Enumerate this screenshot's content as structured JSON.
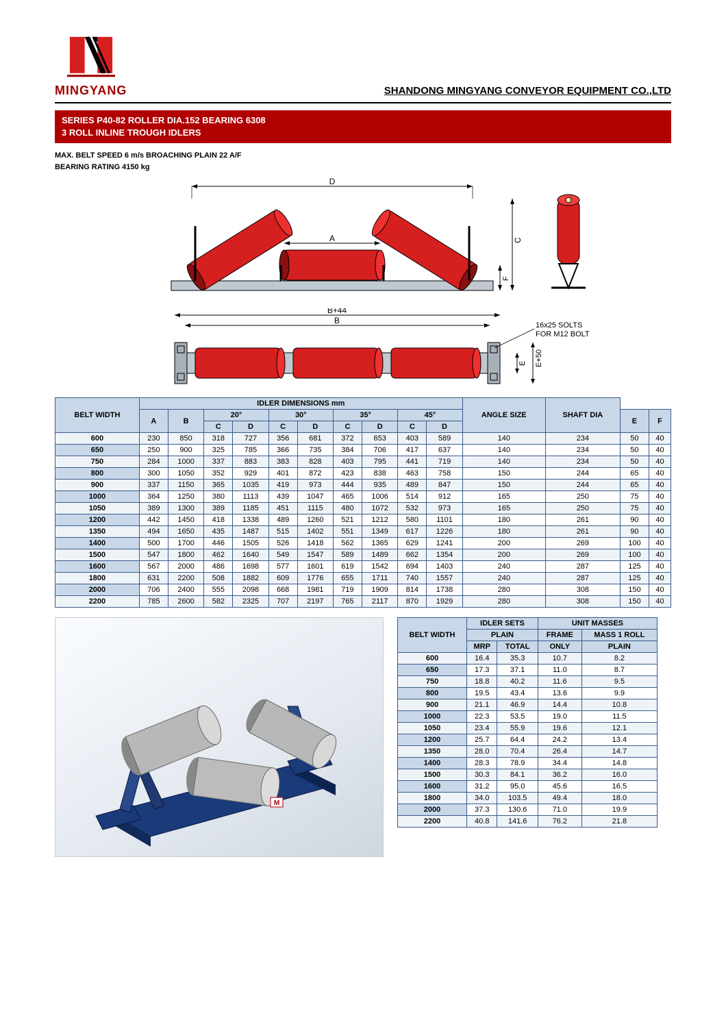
{
  "colors": {
    "brand_red": "#b00000",
    "logo_red": "#d61f1f",
    "table_header_bg": "#c8d8e8",
    "table_border": "#3a5a8a",
    "table_row_alt": "#eef3f8",
    "roller_red": "#d61f1f",
    "roller_red_dark": "#8a0f0f",
    "frame_gray": "#808080"
  },
  "logo": {
    "text": "MINGYANG"
  },
  "header": {
    "company": "SHANDONG MINGYANG CONVEYOR EQUIPMENT CO.,LTD"
  },
  "title": {
    "line1": "SERIES P40-82 ROLLER DIA.152 BEARING 6308",
    "line2": "3 ROLL INLINE TROUGH IDLERS"
  },
  "spec": {
    "line1": "MAX. BELT SPEED 6 m/s BROACHING PLAIN 22 A/F",
    "line2": "BEARING RATING 4150 kg"
  },
  "diagram": {
    "labels": {
      "D": "D",
      "A": "A",
      "C": "C",
      "F": "F",
      "B": "B",
      "B44": "B+44",
      "E": "E",
      "E50": "E+50",
      "slots": "16x25 SOLTS\nFOR M12 BOLT"
    }
  },
  "dim_table": {
    "title": "IDLER DIMENSIONS mm",
    "col_belt": "BELT WIDTH",
    "col_A": "A",
    "col_B": "B",
    "angles": [
      "20°",
      "30°",
      "35°",
      "45°"
    ],
    "sub_C": "C",
    "sub_D": "D",
    "col_E": "E",
    "col_F": "F",
    "col_angle_size": "ANGLE SIZE",
    "col_shaft_dia": "SHAFT DIA",
    "rows": [
      {
        "bw": "600",
        "A": "230",
        "B": "850",
        "20C": "318",
        "20D": "727",
        "30C": "356",
        "30D": "681",
        "35C": "372",
        "35D": "653",
        "45C": "403",
        "45D": "589",
        "E": "140",
        "F": "234",
        "ang": "50",
        "sh": "40"
      },
      {
        "bw": "650",
        "A": "250",
        "B": "900",
        "20C": "325",
        "20D": "785",
        "30C": "366",
        "30D": "735",
        "35C": "384",
        "35D": "706",
        "45C": "417",
        "45D": "637",
        "E": "140",
        "F": "234",
        "ang": "50",
        "sh": "40"
      },
      {
        "bw": "750",
        "A": "284",
        "B": "1000",
        "20C": "337",
        "20D": "883",
        "30C": "383",
        "30D": "828",
        "35C": "403",
        "35D": "795",
        "45C": "441",
        "45D": "719",
        "E": "140",
        "F": "234",
        "ang": "50",
        "sh": "40"
      },
      {
        "bw": "800",
        "A": "300",
        "B": "1050",
        "20C": "352",
        "20D": "929",
        "30C": "401",
        "30D": "872",
        "35C": "423",
        "35D": "838",
        "45C": "463",
        "45D": "758",
        "E": "150",
        "F": "244",
        "ang": "65",
        "sh": "40"
      },
      {
        "bw": "900",
        "A": "337",
        "B": "1150",
        "20C": "365",
        "20D": "1035",
        "30C": "419",
        "30D": "973",
        "35C": "444",
        "35D": "935",
        "45C": "489",
        "45D": "847",
        "E": "150",
        "F": "244",
        "ang": "65",
        "sh": "40"
      },
      {
        "bw": "1000",
        "A": "364",
        "B": "1250",
        "20C": "380",
        "20D": "1113",
        "30C": "439",
        "30D": "1047",
        "35C": "465",
        "35D": "1006",
        "45C": "514",
        "45D": "912",
        "E": "165",
        "F": "250",
        "ang": "75",
        "sh": "40"
      },
      {
        "bw": "1050",
        "A": "389",
        "B": "1300",
        "20C": "389",
        "20D": "1185",
        "30C": "451",
        "30D": "1115",
        "35C": "480",
        "35D": "1072",
        "45C": "532",
        "45D": "973",
        "E": "165",
        "F": "250",
        "ang": "75",
        "sh": "40"
      },
      {
        "bw": "1200",
        "A": "442",
        "B": "1450",
        "20C": "418",
        "20D": "1338",
        "30C": "489",
        "30D": "1260",
        "35C": "521",
        "35D": "1212",
        "45C": "580",
        "45D": "1101",
        "E": "180",
        "F": "261",
        "ang": "90",
        "sh": "40"
      },
      {
        "bw": "1350",
        "A": "494",
        "B": "1650",
        "20C": "435",
        "20D": "1487",
        "30C": "515",
        "30D": "1402",
        "35C": "551",
        "35D": "1349",
        "45C": "617",
        "45D": "1226",
        "E": "180",
        "F": "261",
        "ang": "90",
        "sh": "40"
      },
      {
        "bw": "1400",
        "A": "500",
        "B": "1700",
        "20C": "446",
        "20D": "1505",
        "30C": "526",
        "30D": "1418",
        "35C": "562",
        "35D": "1365",
        "45C": "629",
        "45D": "1241",
        "E": "200",
        "F": "269",
        "ang": "100",
        "sh": "40"
      },
      {
        "bw": "1500",
        "A": "547",
        "B": "1800",
        "20C": "462",
        "20D": "1640",
        "30C": "549",
        "30D": "1547",
        "35C": "589",
        "35D": "1489",
        "45C": "662",
        "45D": "1354",
        "E": "200",
        "F": "269",
        "ang": "100",
        "sh": "40"
      },
      {
        "bw": "1600",
        "A": "567",
        "B": "2000",
        "20C": "486",
        "20D": "1698",
        "30C": "577",
        "30D": "1601",
        "35C": "619",
        "35D": "1542",
        "45C": "694",
        "45D": "1403",
        "E": "240",
        "F": "287",
        "ang": "125",
        "sh": "40"
      },
      {
        "bw": "1800",
        "A": "631",
        "B": "2200",
        "20C": "508",
        "20D": "1882",
        "30C": "609",
        "30D": "1776",
        "35C": "655",
        "35D": "1711",
        "45C": "740",
        "45D": "1557",
        "E": "240",
        "F": "287",
        "ang": "125",
        "sh": "40"
      },
      {
        "bw": "2000",
        "A": "706",
        "B": "2400",
        "20C": "555",
        "20D": "2098",
        "30C": "668",
        "30D": "1981",
        "35C": "719",
        "35D": "1909",
        "45C": "814",
        "45D": "1738",
        "E": "280",
        "F": "308",
        "ang": "150",
        "sh": "40"
      },
      {
        "bw": "2200",
        "A": "785",
        "B": "2600",
        "20C": "582",
        "20D": "2325",
        "30C": "707",
        "30D": "2197",
        "35C": "765",
        "35D": "2117",
        "45C": "870",
        "45D": "1929",
        "E": "280",
        "F": "308",
        "ang": "150",
        "sh": "40"
      }
    ]
  },
  "mass_table": {
    "h_idler_sets": "IDLER SETS",
    "h_unit_masses": "UNIT MASSES",
    "h_belt": "BELT WIDTH",
    "h_plain": "PLAIN",
    "h_frame": "FRAME",
    "h_mass1": "MASS 1 ROLL",
    "h_mrp": "MRP",
    "h_total": "TOTAL",
    "h_only": "ONLY",
    "h_plain2": "PLAIN",
    "rows": [
      {
        "bw": "600",
        "mrp": "16.4",
        "total": "35.3",
        "frame": "10.7",
        "mass": "8.2"
      },
      {
        "bw": "650",
        "mrp": "17.3",
        "total": "37.1",
        "frame": "11.0",
        "mass": "8.7"
      },
      {
        "bw": "750",
        "mrp": "18.8",
        "total": "40.2",
        "frame": "11.6",
        "mass": "9.5"
      },
      {
        "bw": "800",
        "mrp": "19.5",
        "total": "43.4",
        "frame": "13.6",
        "mass": "9.9"
      },
      {
        "bw": "900",
        "mrp": "21.1",
        "total": "46.9",
        "frame": "14.4",
        "mass": "10.8"
      },
      {
        "bw": "1000",
        "mrp": "22.3",
        "total": "53.5",
        "frame": "19.0",
        "mass": "11.5"
      },
      {
        "bw": "1050",
        "mrp": "23.4",
        "total": "55.9",
        "frame": "19.6",
        "mass": "12.1"
      },
      {
        "bw": "1200",
        "mrp": "25.7",
        "total": "64.4",
        "frame": "24.2",
        "mass": "13.4"
      },
      {
        "bw": "1350",
        "mrp": "28.0",
        "total": "70.4",
        "frame": "26.4",
        "mass": "14.7"
      },
      {
        "bw": "1400",
        "mrp": "28.3",
        "total": "78.9",
        "frame": "34.4",
        "mass": "14.8"
      },
      {
        "bw": "1500",
        "mrp": "30.3",
        "total": "84.1",
        "frame": "36.2",
        "mass": "16.0"
      },
      {
        "bw": "1600",
        "mrp": "31.2",
        "total": "95.0",
        "frame": "45.6",
        "mass": "16.5"
      },
      {
        "bw": "1800",
        "mrp": "34.0",
        "total": "103.5",
        "frame": "49.4",
        "mass": "18.0"
      },
      {
        "bw": "2000",
        "mrp": "37.3",
        "total": "130.6",
        "frame": "71.0",
        "mass": "19.9"
      },
      {
        "bw": "2200",
        "mrp": "40.8",
        "total": "141.6",
        "frame": "76.2",
        "mass": "21.8"
      }
    ]
  }
}
